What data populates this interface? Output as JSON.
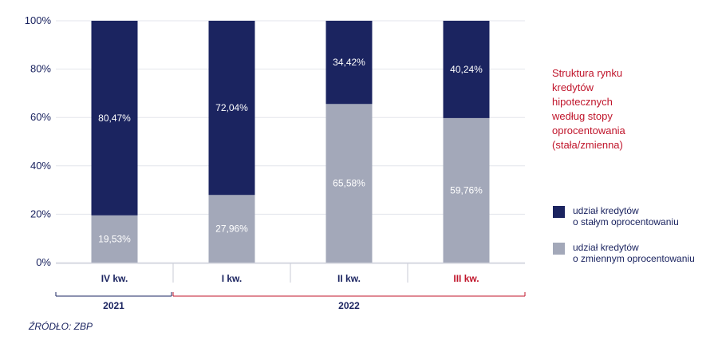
{
  "chart_data": {
    "type": "bar",
    "stacked": true,
    "categories": [
      "IV kw.",
      "I kw.",
      "II kw.",
      "III kw."
    ],
    "category_colors": [
      "#1b2460",
      "#1b2460",
      "#1b2460",
      "#c0152b"
    ],
    "series": [
      {
        "name": "udział kredytów o zmiennym oprocentowaniu",
        "values": [
          19.53,
          27.96,
          65.58,
          59.76
        ],
        "labels": [
          "19,53%",
          "27,96%",
          "65,58%",
          "59,76%"
        ],
        "color": "#a3a8b9"
      },
      {
        "name": "udział kredytów o stałym oprocentowaniu",
        "values": [
          80.47,
          72.04,
          34.42,
          40.24
        ],
        "labels": [
          "80,47%",
          "72,04%",
          "34,42%",
          "40,24%"
        ],
        "color": "#1b2460"
      }
    ],
    "ylim": [
      0,
      100
    ],
    "yticks": [
      0,
      20,
      40,
      60,
      80,
      100
    ],
    "ytick_labels": [
      "0%",
      "20%",
      "40%",
      "60%",
      "80%",
      "100%"
    ],
    "grid": true,
    "year_groups": [
      {
        "label": "2021",
        "from": 0,
        "to": 0,
        "color": "#1b2460"
      },
      {
        "label": "2022",
        "from": 1,
        "to": 3,
        "color": "#c0152b"
      }
    ],
    "title_lines": [
      "Struktura rynku",
      "kredytów",
      "hipotecznych",
      "według stopy",
      "oprocentowania",
      "(stała/zmienna)"
    ],
    "legend": [
      {
        "lines": [
          "udział kredytów",
          "o stałym oprocentowaniu"
        ],
        "color": "#1b2460"
      },
      {
        "lines": [
          "udział kredytów",
          "o zmiennym oprocentowaniu"
        ],
        "color": "#a3a8b9"
      }
    ],
    "legend_position": "right",
    "source": "ŹRÓDŁO: ZBP"
  }
}
